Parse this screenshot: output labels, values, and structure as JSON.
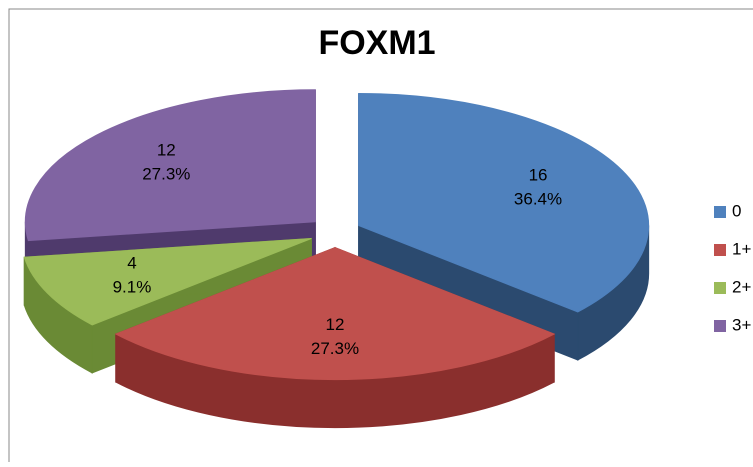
{
  "chart_data": {
    "type": "pie",
    "title": "FOXM1",
    "categories": [
      "0",
      "1+",
      "2+",
      "3+"
    ],
    "values": [
      16,
      12,
      4,
      12
    ],
    "percent_labels": [
      "36.4%",
      "27.3%",
      "9.1%",
      "27.3%"
    ],
    "colors": [
      "#4F81BD",
      "#C0504D",
      "#9BBB59",
      "#8064A2"
    ],
    "side_colors": [
      "#2B4A6F",
      "#8A2F2D",
      "#6A8A35",
      "#4F3A6C"
    ],
    "legend": "right"
  }
}
